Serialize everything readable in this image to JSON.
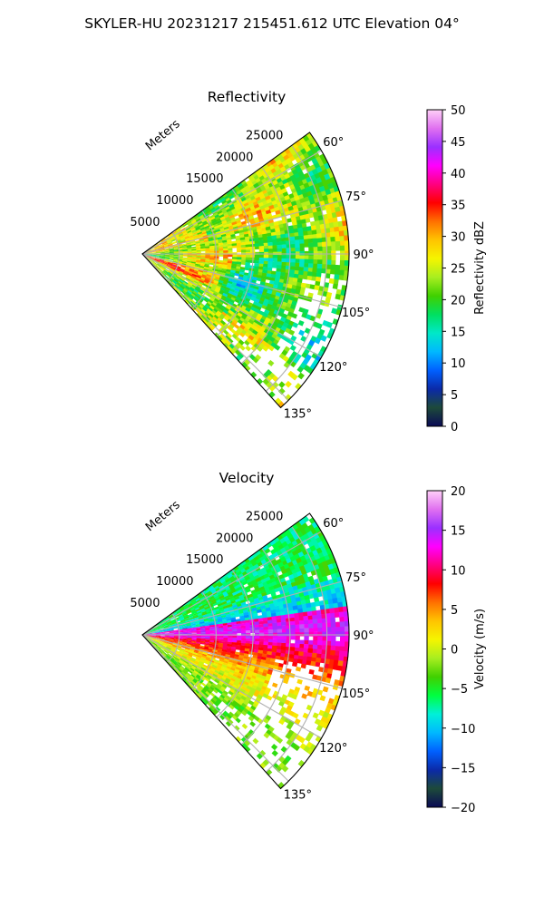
{
  "figure": {
    "title": "SKYLER-HU  20231217  215451.612 UTC Elevation 04°"
  },
  "chart_data": [
    {
      "type": "heatmap",
      "subtype": "polar-sector",
      "title": "Reflectivity",
      "range_label": "Meters",
      "range_ticks": [
        "5000",
        "10000",
        "15000",
        "20000",
        "25000"
      ],
      "range_tick_values": [
        5000,
        10000,
        15000,
        20000,
        25000
      ],
      "range_max": 28000,
      "azimuth_ticks": [
        "60°",
        "75°",
        "90°",
        "105°",
        "120°",
        "135°"
      ],
      "azimuth_tick_values": [
        60,
        75,
        90,
        105,
        120,
        135
      ],
      "azimuth_range": [
        54,
        138
      ],
      "grid": true,
      "colorbar": {
        "label": "Reflectivity dBZ",
        "min": 0,
        "max": 50,
        "tick_labels": [
          "0",
          "5",
          "10",
          "15",
          "20",
          "25",
          "30",
          "35",
          "40",
          "45",
          "50"
        ],
        "tick_values": [
          0,
          5,
          10,
          15,
          20,
          25,
          30,
          35,
          40,
          45,
          50
        ]
      }
    },
    {
      "type": "heatmap",
      "subtype": "polar-sector",
      "title": "Velocity",
      "range_label": "Meters",
      "range_ticks": [
        "5000",
        "10000",
        "15000",
        "20000",
        "25000"
      ],
      "range_tick_values": [
        5000,
        10000,
        15000,
        20000,
        25000
      ],
      "range_max": 28000,
      "azimuth_ticks": [
        "60°",
        "75°",
        "90°",
        "105°",
        "120°",
        "135°"
      ],
      "azimuth_tick_values": [
        60,
        75,
        90,
        105,
        120,
        135
      ],
      "azimuth_range": [
        54,
        138
      ],
      "grid": true,
      "colorbar": {
        "label": "Velocity (m/s)",
        "min": -20,
        "max": 20,
        "tick_labels": [
          "−20",
          "−15",
          "−10",
          "−5",
          "0",
          "5",
          "10",
          "15",
          "20"
        ],
        "tick_values": [
          -20,
          -15,
          -10,
          -5,
          0,
          5,
          10,
          15,
          20
        ]
      }
    }
  ],
  "colors": {
    "reflectivity_stops": [
      "#0a0a55",
      "#1d4a3a",
      "#0b2aa8",
      "#0060ff",
      "#00b8ff",
      "#00e8c8",
      "#00e060",
      "#40d000",
      "#a8ee20",
      "#f5f500",
      "#ffc400",
      "#ff7000",
      "#ff0000",
      "#ff0080",
      "#ff00ff",
      "#9a30ff",
      "#e070f0",
      "#ffd0f8"
    ],
    "velocity_stops": [
      "#0a0a55",
      "#1d4a3a",
      "#0b2aa8",
      "#0060ff",
      "#00b8ff",
      "#00f0d8",
      "#00ff40",
      "#40d000",
      "#a8ee20",
      "#f5f500",
      "#ffc400",
      "#ff7000",
      "#ff0000",
      "#ff0080",
      "#ff00ff",
      "#9a30ff",
      "#e070f0",
      "#ffd0f8"
    ]
  }
}
